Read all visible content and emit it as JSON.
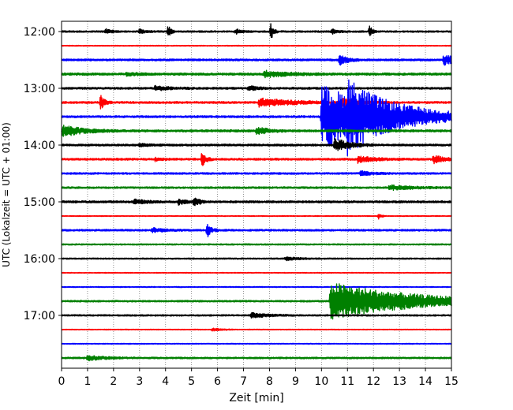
{
  "chart_data": {
    "type": "line",
    "title": "",
    "xlabel": "Zeit  [min]",
    "ylabel": "UTC (Lokalzeit = UTC + 01:00)",
    "xlim": [
      0,
      15
    ],
    "x_ticks": [
      0,
      1,
      2,
      3,
      4,
      5,
      6,
      7,
      8,
      9,
      10,
      11,
      12,
      13,
      14,
      15
    ],
    "y_tick_labels": [
      "12:00",
      "13:00",
      "14:00",
      "15:00",
      "16:00",
      "17:00"
    ],
    "grid": "vertical dotted",
    "trace_colors": [
      "#000000",
      "#ff0000",
      "#0000ff",
      "#008000"
    ],
    "traces": [
      {
        "start": "12:00",
        "color": "#000000",
        "amp": 1.0,
        "events": [
          {
            "t": 4.1,
            "a": 8,
            "d": 0.1
          },
          {
            "t": 8.05,
            "a": 11,
            "d": 0.1
          },
          {
            "t": 11.85,
            "a": 9,
            "d": 0.1
          },
          {
            "t": 1.7,
            "a": 3,
            "d": 0.2
          },
          {
            "t": 3.0,
            "a": 3,
            "d": 0.2
          },
          {
            "t": 6.7,
            "a": 3,
            "d": 0.2
          },
          {
            "t": 10.4,
            "a": 3,
            "d": 0.2
          }
        ]
      },
      {
        "start": "12:15",
        "color": "#ff0000",
        "amp": 0.5,
        "events": []
      },
      {
        "start": "12:30",
        "color": "#0000ff",
        "amp": 1.2,
        "events": [
          {
            "t": 10.7,
            "a": 6,
            "d": 0.3
          },
          {
            "t": 14.7,
            "a": 6,
            "d": 0.6
          }
        ]
      },
      {
        "start": "12:45",
        "color": "#008000",
        "amp": 1.4,
        "events": [
          {
            "t": 7.8,
            "a": 4,
            "d": 0.8
          },
          {
            "t": 2.5,
            "a": 2,
            "d": 0.4
          }
        ]
      },
      {
        "start": "13:00",
        "color": "#000000",
        "amp": 1.2,
        "events": [
          {
            "t": 3.6,
            "a": 3,
            "d": 0.5
          },
          {
            "t": 7.2,
            "a": 3,
            "d": 0.3
          }
        ]
      },
      {
        "start": "13:15",
        "color": "#ff0000",
        "amp": 1.2,
        "events": [
          {
            "t": 1.5,
            "a": 9,
            "d": 0.15
          },
          {
            "t": 7.6,
            "a": 5,
            "d": 1.3
          },
          {
            "t": 10.8,
            "a": 5,
            "d": 0.6
          }
        ]
      },
      {
        "start": "13:30",
        "color": "#0000ff",
        "amp": 1.2,
        "events": [
          {
            "t": 10.0,
            "a": 40,
            "d": 2.6
          },
          {
            "t": 11.0,
            "a": 24,
            "d": 1.0
          }
        ]
      },
      {
        "start": "13:45",
        "color": "#008000",
        "amp": 1.4,
        "events": [
          {
            "t": 0.05,
            "a": 7,
            "d": 0.7
          },
          {
            "t": 7.5,
            "a": 5,
            "d": 0.4
          }
        ]
      },
      {
        "start": "14:00",
        "color": "#000000",
        "amp": 1.2,
        "events": [
          {
            "t": 10.5,
            "a": 9,
            "d": 0.5
          },
          {
            "t": 3.0,
            "a": 2,
            "d": 0.3
          }
        ]
      },
      {
        "start": "14:15",
        "color": "#ff0000",
        "amp": 1.2,
        "events": [
          {
            "t": 5.4,
            "a": 9,
            "d": 0.15
          },
          {
            "t": 11.4,
            "a": 4,
            "d": 0.6
          },
          {
            "t": 14.3,
            "a": 5,
            "d": 0.4
          },
          {
            "t": 3.6,
            "a": 2,
            "d": 0.2
          }
        ]
      },
      {
        "start": "14:30",
        "color": "#0000ff",
        "amp": 1.1,
        "events": [
          {
            "t": 11.5,
            "a": 3,
            "d": 0.4
          }
        ]
      },
      {
        "start": "14:45",
        "color": "#008000",
        "amp": 1.1,
        "events": [
          {
            "t": 12.6,
            "a": 3,
            "d": 0.8
          }
        ]
      },
      {
        "start": "15:00",
        "color": "#000000",
        "amp": 1.3,
        "events": [
          {
            "t": 5.1,
            "a": 8,
            "d": 0.15
          },
          {
            "t": 2.8,
            "a": 3,
            "d": 0.4
          },
          {
            "t": 4.5,
            "a": 3,
            "d": 0.3
          }
        ]
      },
      {
        "start": "15:15",
        "color": "#ff0000",
        "amp": 0.5,
        "events": [
          {
            "t": 12.2,
            "a": 4,
            "d": 0.1
          }
        ]
      },
      {
        "start": "15:30",
        "color": "#0000ff",
        "amp": 1.1,
        "events": [
          {
            "t": 5.6,
            "a": 9,
            "d": 0.15
          },
          {
            "t": 3.5,
            "a": 3,
            "d": 0.4
          }
        ]
      },
      {
        "start": "15:45",
        "color": "#008000",
        "amp": 0.8,
        "events": []
      },
      {
        "start": "16:00",
        "color": "#000000",
        "amp": 0.8,
        "events": [
          {
            "t": 8.6,
            "a": 2,
            "d": 0.5
          }
        ]
      },
      {
        "start": "16:15",
        "color": "#ff0000",
        "amp": 0.5,
        "events": []
      },
      {
        "start": "16:30",
        "color": "#0000ff",
        "amp": 0.6,
        "events": []
      },
      {
        "start": "16:45",
        "color": "#008000",
        "amp": 1.0,
        "events": [
          {
            "t": 10.35,
            "a": 24,
            "d": 3.0
          }
        ]
      },
      {
        "start": "17:00",
        "color": "#000000",
        "amp": 0.9,
        "events": [
          {
            "t": 7.3,
            "a": 3,
            "d": 0.6
          }
        ]
      },
      {
        "start": "17:15",
        "color": "#ff0000",
        "amp": 0.5,
        "events": [
          {
            "t": 5.8,
            "a": 2,
            "d": 0.3
          }
        ]
      },
      {
        "start": "17:30",
        "color": "#0000ff",
        "amp": 0.6,
        "events": []
      },
      {
        "start": "17:45",
        "color": "#008000",
        "amp": 1.0,
        "events": [
          {
            "t": 1.0,
            "a": 3,
            "d": 0.6
          }
        ]
      }
    ]
  }
}
